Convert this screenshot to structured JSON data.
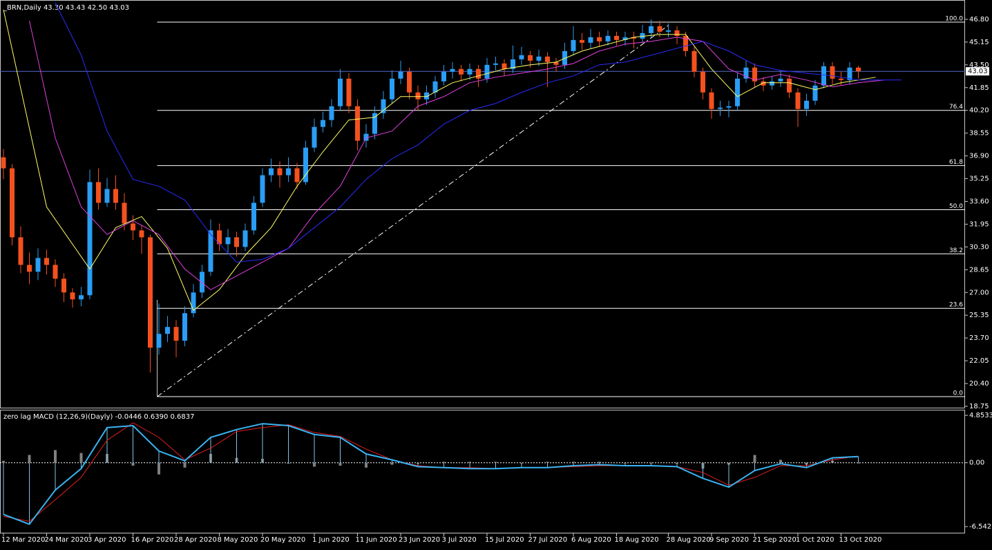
{
  "chart_data": [
    {
      "type": "candlestick",
      "title": "_BRN,Daily  43.30 43.43 42.50 43.03",
      "bull_color": "#2a9df4",
      "bear_color": "#f4511e",
      "ylim": [
        18.65,
        48.2
      ],
      "yticks": [
        {
          "value": 46.8,
          "label": "46.80"
        },
        45.15,
        {
          "value": 43.5,
          "label": "43.50"
        },
        41.85,
        {
          "value": 40.2,
          "label": "40.20"
        },
        38.55,
        {
          "value": 36.9,
          "label": "36.90"
        },
        35.25,
        {
          "value": 33.6,
          "label": "33.60"
        },
        31.95,
        {
          "value": 30.3,
          "label": "30.30"
        },
        28.65,
        {
          "value": 27,
          "label": "27.00"
        },
        25.35,
        {
          "value": 23.7,
          "label": "23.70"
        },
        22.05,
        {
          "value": 20.4,
          "label": "20.40"
        },
        18.75
      ],
      "xticks": [
        {
          "value": 0,
          "label": "12 Mar 2020"
        },
        {
          "value": 5,
          "label": "24 Mar 2020"
        },
        {
          "value": 10,
          "label": "3 Apr 2020"
        },
        {
          "value": 15,
          "label": "16 Apr 2020"
        },
        {
          "value": 20,
          "label": "28 Apr 2020"
        },
        {
          "value": 25,
          "label": "8 May 2020"
        },
        {
          "value": 30,
          "label": "20 May 2020"
        },
        {
          "value": 36,
          "label": "1 Jun 2020"
        },
        {
          "value": 41,
          "label": "11 Jun 2020"
        },
        {
          "value": 46,
          "label": "23 Jun 2020"
        },
        {
          "value": 51,
          "label": "3 Jul 2020"
        },
        {
          "value": 56,
          "label": "15 Jul 2020"
        },
        {
          "value": 61,
          "label": "27 Jul 2020"
        },
        {
          "value": 66,
          "label": "6 Aug 2020"
        },
        {
          "value": 71,
          "label": "18 Aug 2020"
        },
        {
          "value": 77,
          "label": "28 Aug 2020"
        },
        {
          "value": 82,
          "label": "9 Sep 2020"
        },
        {
          "value": 87,
          "label": "21 Sep 2020"
        },
        {
          "value": 92,
          "label": "1 Oct 2020"
        },
        {
          "value": 97,
          "label": "13 Oct 2020"
        }
      ],
      "last_price": 43.03,
      "ohlc": [
        [
          36.8,
          37.4,
          35.2,
          36.0
        ],
        [
          36.0,
          36.3,
          30.4,
          31.0
        ],
        [
          31.0,
          31.8,
          28.4,
          29.0
        ],
        [
          29.0,
          29.9,
          27.6,
          28.5
        ],
        [
          28.5,
          30.2,
          27.9,
          29.5
        ],
        [
          29.5,
          30.1,
          28.3,
          29.0
        ],
        [
          29.0,
          29.4,
          27.4,
          28.0
        ],
        [
          28.0,
          28.4,
          26.3,
          27.0
        ],
        [
          27.0,
          27.3,
          25.9,
          26.5
        ],
        [
          26.5,
          27.4,
          26.0,
          26.8
        ],
        [
          26.8,
          35.9,
          26.5,
          35.0
        ],
        [
          35.0,
          36.0,
          33.0,
          33.5
        ],
        [
          33.5,
          35.3,
          33.2,
          34.5
        ],
        [
          34.5,
          35.5,
          33.0,
          33.5
        ],
        [
          33.5,
          34.2,
          31.5,
          32.0
        ],
        [
          32.0,
          32.6,
          30.8,
          31.5
        ],
        [
          31.5,
          31.9,
          29.8,
          31.0
        ],
        [
          31.0,
          31.2,
          21.2,
          23.0
        ],
        [
          23.0,
          26.2,
          22.5,
          24.0
        ],
        [
          24.0,
          25.3,
          23.4,
          24.5
        ],
        [
          24.5,
          25.0,
          22.3,
          23.5
        ],
        [
          23.5,
          26.0,
          23.1,
          25.5
        ],
        [
          25.5,
          27.6,
          25.2,
          27.0
        ],
        [
          27.0,
          29.0,
          26.6,
          28.5
        ],
        [
          28.5,
          32.3,
          28.2,
          31.5
        ],
        [
          31.5,
          32.0,
          30.0,
          30.5
        ],
        [
          30.5,
          31.6,
          29.9,
          31.0
        ],
        [
          31.0,
          31.4,
          29.6,
          30.3
        ],
        [
          30.3,
          32.0,
          30.0,
          31.5
        ],
        [
          31.5,
          34.0,
          31.2,
          33.5
        ],
        [
          33.5,
          36.0,
          33.2,
          35.5
        ],
        [
          35.5,
          36.7,
          35.0,
          36.0
        ],
        [
          36.0,
          36.5,
          34.6,
          35.5
        ],
        [
          35.5,
          36.8,
          35.0,
          36.0
        ],
        [
          36.0,
          36.4,
          34.5,
          35.0
        ],
        [
          35.0,
          38.0,
          34.8,
          37.5
        ],
        [
          37.5,
          39.6,
          37.2,
          39.0
        ],
        [
          39.0,
          40.1,
          38.6,
          39.5
        ],
        [
          39.5,
          41.0,
          39.0,
          40.5
        ],
        [
          40.5,
          43.2,
          40.2,
          42.5
        ],
        [
          42.5,
          42.9,
          40.0,
          40.5
        ],
        [
          40.5,
          41.0,
          37.3,
          38.0
        ],
        [
          38.0,
          39.2,
          37.5,
          38.5
        ],
        [
          38.5,
          40.5,
          38.1,
          40.0
        ],
        [
          40.0,
          41.6,
          39.6,
          41.0
        ],
        [
          41.0,
          43.1,
          40.7,
          42.5
        ],
        [
          42.5,
          43.8,
          42.1,
          43.0
        ],
        [
          43.0,
          43.3,
          41.0,
          41.5
        ],
        [
          41.5,
          42.0,
          40.2,
          41.0
        ],
        [
          41.0,
          42.0,
          40.6,
          41.5
        ],
        [
          41.5,
          42.7,
          41.1,
          42.3
        ],
        [
          42.3,
          43.5,
          42.0,
          43.0
        ],
        [
          43.0,
          43.7,
          42.5,
          43.2
        ],
        [
          43.2,
          43.5,
          42.3,
          42.8
        ],
        [
          42.8,
          43.6,
          42.4,
          43.2
        ],
        [
          43.2,
          43.5,
          41.9,
          42.5
        ],
        [
          42.5,
          44.0,
          42.2,
          43.5
        ],
        [
          43.5,
          44.1,
          43.1,
          43.6
        ],
        [
          43.6,
          43.9,
          42.7,
          43.2
        ],
        [
          43.2,
          44.9,
          42.9,
          43.9
        ],
        [
          43.9,
          44.8,
          43.5,
          44.2
        ],
        [
          44.2,
          44.5,
          43.3,
          43.8
        ],
        [
          43.8,
          44.6,
          43.4,
          44.1
        ],
        [
          44.1,
          44.4,
          41.9,
          43.7
        ],
        [
          43.7,
          44.0,
          43.0,
          43.5
        ],
        [
          43.5,
          45.1,
          43.2,
          44.5
        ],
        [
          44.5,
          46.3,
          44.2,
          45.3
        ],
        [
          45.3,
          45.8,
          44.6,
          45.1
        ],
        [
          45.1,
          46.1,
          44.7,
          45.5
        ],
        [
          45.5,
          45.9,
          44.8,
          45.2
        ],
        [
          45.2,
          46.0,
          44.9,
          45.6
        ],
        [
          45.6,
          45.9,
          44.9,
          45.3
        ],
        [
          45.3,
          45.9,
          44.9,
          45.5
        ],
        [
          45.5,
          45.9,
          44.7,
          45.4
        ],
        [
          45.4,
          46.4,
          45.1,
          45.8
        ],
        [
          45.8,
          46.8,
          45.5,
          46.3
        ],
        [
          46.3,
          46.7,
          45.5,
          45.9
        ],
        [
          45.9,
          46.5,
          45.5,
          46.0
        ],
        [
          46.0,
          46.3,
          45.0,
          45.6
        ],
        [
          45.6,
          45.9,
          44.1,
          44.5
        ],
        [
          44.5,
          44.8,
          42.6,
          43.0
        ],
        [
          43.0,
          43.3,
          41.0,
          41.5
        ],
        [
          41.5,
          41.8,
          39.6,
          40.3
        ],
        [
          40.3,
          40.9,
          39.8,
          40.4
        ],
        [
          40.4,
          40.9,
          39.7,
          40.5
        ],
        [
          40.5,
          42.9,
          40.2,
          42.5
        ],
        [
          42.5,
          43.8,
          42.2,
          43.3
        ],
        [
          43.3,
          43.6,
          41.9,
          42.3
        ],
        [
          42.3,
          42.6,
          41.6,
          42.0
        ],
        [
          42.0,
          42.7,
          41.7,
          42.3
        ],
        [
          42.3,
          43.1,
          41.9,
          42.5
        ],
        [
          42.5,
          42.8,
          41.1,
          41.5
        ],
        [
          41.5,
          41.8,
          39.0,
          40.3
        ],
        [
          40.3,
          41.4,
          39.8,
          40.9
        ],
        [
          40.9,
          42.4,
          40.6,
          42.0
        ],
        [
          42.0,
          43.7,
          41.8,
          43.4
        ],
        [
          43.4,
          43.7,
          42.1,
          42.5
        ],
        [
          42.5,
          43.0,
          42.0,
          42.4
        ],
        [
          42.4,
          43.7,
          42.1,
          43.3
        ],
        [
          43.3,
          43.43,
          42.5,
          43.03
        ]
      ],
      "lines": [
        {
          "color": "#ffff66",
          "x": [
            0,
            5,
            10,
            13,
            16,
            19,
            22,
            25,
            28,
            31,
            34,
            37,
            40,
            43,
            46,
            49,
            52,
            55,
            58,
            61,
            64,
            67,
            70,
            73,
            76,
            79,
            82,
            85,
            88,
            91,
            94,
            97,
            101
          ],
          "values": [
            47.5,
            33.2,
            28.7,
            31.7,
            32.5,
            30.2,
            25.7,
            27.2,
            29.7,
            31.7,
            34.7,
            37.2,
            39.5,
            39.7,
            41.2,
            41.2,
            42.2,
            42.7,
            43.2,
            43.5,
            43.7,
            44.5,
            45.0,
            45.5,
            45.7,
            45.7,
            43.2,
            41.2,
            42.2,
            42.2,
            41.7,
            42.2,
            42.6
          ]
        },
        {
          "color": "#e040e0",
          "x": [
            3,
            6,
            9,
            12,
            15,
            18,
            21,
            24,
            27,
            30,
            33,
            36,
            39,
            42,
            45,
            48,
            51,
            54,
            57,
            60,
            63,
            66,
            69,
            72,
            75,
            78,
            81,
            84,
            87,
            90,
            93,
            96,
            99,
            102
          ],
          "values": [
            46.7,
            38.2,
            33.2,
            31.2,
            32.2,
            31.2,
            28.7,
            27.2,
            28.2,
            29.2,
            30.2,
            32.7,
            34.7,
            38.2,
            38.7,
            40.5,
            41.2,
            42.2,
            42.6,
            42.9,
            43.2,
            43.6,
            44.5,
            45.0,
            45.2,
            45.5,
            45.2,
            43.2,
            42.4,
            42.8,
            42.4,
            41.9,
            42.2,
            42.4
          ]
        },
        {
          "color": "#2b2bff",
          "x": [
            6,
            9,
            12,
            15,
            18,
            21,
            24,
            27,
            30,
            33,
            36,
            39,
            42,
            45,
            48,
            51,
            54,
            57,
            60,
            63,
            66,
            69,
            72,
            75,
            78,
            81,
            84,
            87,
            90,
            93,
            96,
            99,
            104
          ],
          "values": [
            48.0,
            44.2,
            38.7,
            35.2,
            34.7,
            33.7,
            31.2,
            29.2,
            29.4,
            30.2,
            31.7,
            33.2,
            35.2,
            36.7,
            37.7,
            39.2,
            40.2,
            40.7,
            41.5,
            42.2,
            42.7,
            43.5,
            43.7,
            44.2,
            44.7,
            45.2,
            44.5,
            43.5,
            43.1,
            42.9,
            42.7,
            42.4,
            42.4
          ]
        }
      ],
      "fib_levels": [
        {
          "label": "100.0",
          "value": 46.6
        },
        {
          "label": "76.4",
          "value": 40.2
        },
        {
          "label": "61.8",
          "value": 36.2
        },
        {
          "label": "50.0",
          "value": 33.0
        },
        {
          "label": "38.2",
          "value": 29.8
        },
        {
          "label": "23.6",
          "value": 25.85
        },
        {
          "label": "0.0",
          "value": 19.45
        }
      ],
      "trendline": {
        "x": [
          17.8,
          77.2
        ],
        "values": [
          19.45,
          46.45
        ]
      }
    },
    {
      "type": "macd",
      "title": "zero lag MACD (12,26,9)(Dayly) -0.0446 0.6390 0.6837",
      "ylim": [
        -7.17,
        5.36
      ],
      "yticks": [
        4.8533,
        {
          "value": 0,
          "label": "0.00"
        },
        -6.5423
      ],
      "x": [
        0,
        3,
        6,
        9,
        12,
        15,
        18,
        21,
        24,
        27,
        30,
        33,
        36,
        39,
        42,
        45,
        48,
        51,
        54,
        57,
        60,
        63,
        66,
        69,
        72,
        75,
        78,
        81,
        84,
        87,
        90,
        93,
        96,
        99
      ],
      "macd": {
        "color": "#3ab4f2",
        "values": [
          -5.3,
          -6.3,
          -2.8,
          -0.6,
          3.6,
          3.8,
          1.2,
          0.2,
          2.6,
          3.4,
          4.0,
          3.8,
          2.9,
          2.6,
          0.9,
          0.3,
          -0.4,
          -0.5,
          -0.6,
          -0.6,
          -0.5,
          -0.5,
          -0.3,
          -0.2,
          -0.3,
          -0.3,
          -0.4,
          -1.6,
          -2.5,
          -0.8,
          -0.1,
          -0.5,
          0.5,
          0.639
        ]
      },
      "signal": {
        "color": "#e32020",
        "values": [
          -5.5,
          -6.0,
          -3.8,
          -1.5,
          2.3,
          4.1,
          2.6,
          0.3,
          1.5,
          3.2,
          3.6,
          3.9,
          3.1,
          2.7,
          1.4,
          0.3,
          -0.3,
          -0.5,
          -0.5,
          -0.6,
          -0.5,
          -0.5,
          -0.4,
          -0.3,
          -0.3,
          -0.3,
          -0.4,
          -1.0,
          -2.3,
          -1.5,
          -0.3,
          -0.3,
          0.3,
          0.6837
        ]
      },
      "histogram": {
        "color": "#808080",
        "values": [
          0.2,
          0.8,
          1.3,
          1.0,
          0.9,
          -0.3,
          -1.2,
          -0.5,
          0.9,
          0.5,
          0.4,
          -0.1,
          -0.4,
          -0.3,
          -0.5,
          -0.2,
          -0.1,
          0.1,
          0.1,
          0.1,
          0.0,
          0.1,
          0.1,
          0.1,
          0.0,
          0.0,
          -0.1,
          -0.6,
          -0.2,
          0.8,
          0.3,
          -0.2,
          0.2,
          -0.0446
        ]
      }
    }
  ]
}
